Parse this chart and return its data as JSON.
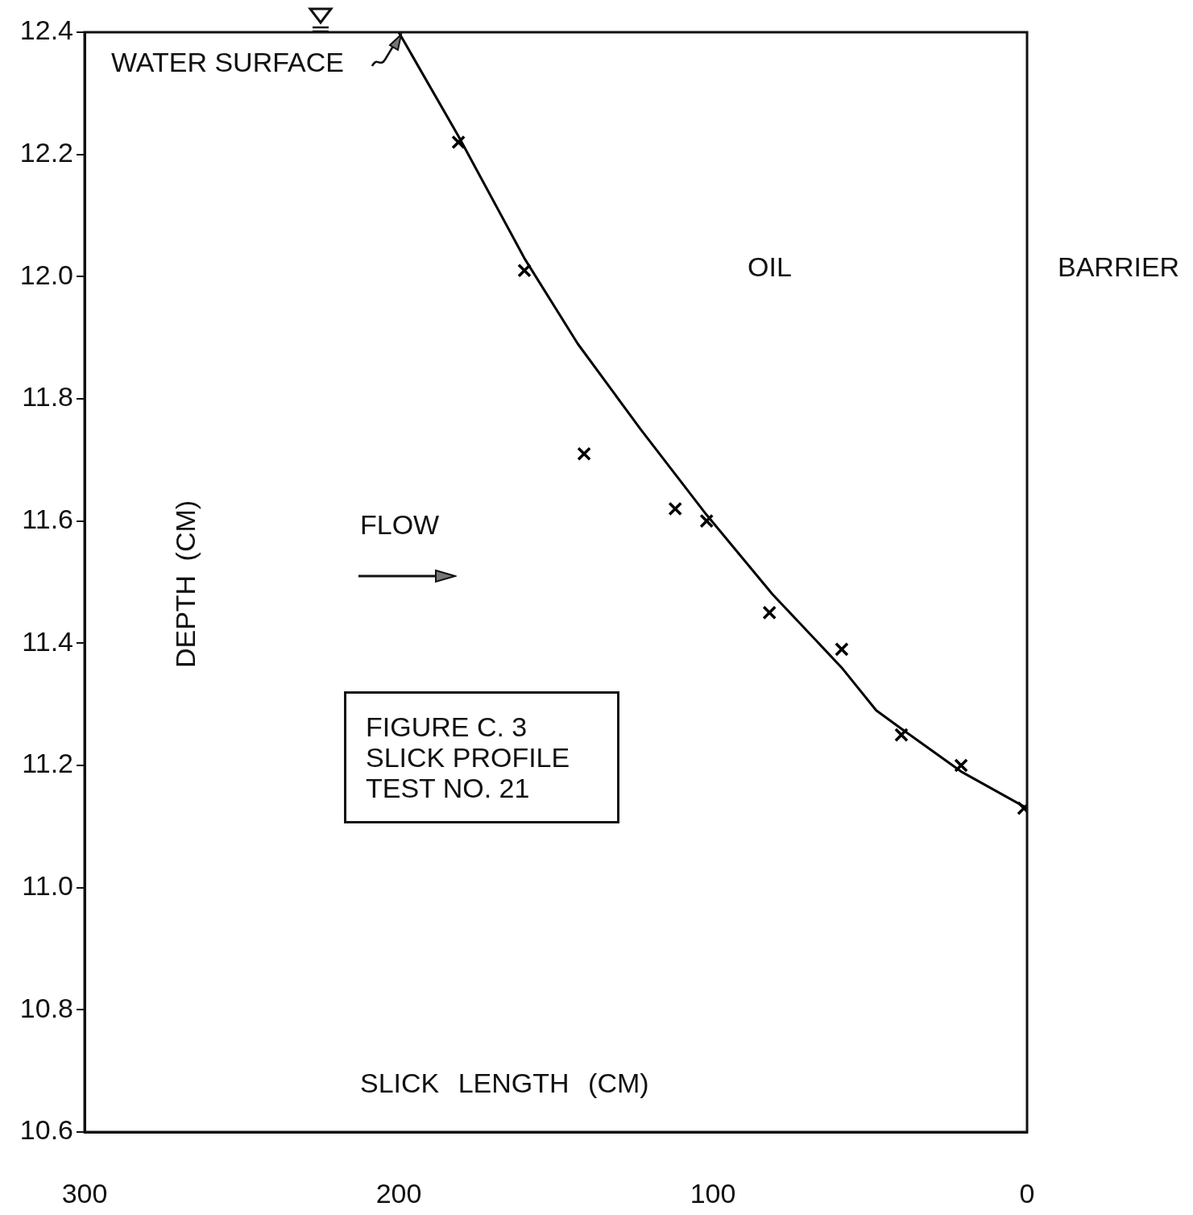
{
  "chart_data": {
    "type": "scatter",
    "title": "FIGURE C. 3",
    "subtitle": "SLICK PROFILE TEST NO. 21",
    "xlabel": "SLICK LENGTH (CM)",
    "ylabel": "DEPTH (CM)",
    "xlim": [
      300,
      0
    ],
    "xticks": [
      300,
      200,
      100,
      0
    ],
    "ylim": [
      10.6,
      12.4
    ],
    "yticks": [
      10.6,
      10.8,
      {
        "value": 11,
        "label": "11.0"
      },
      11.2,
      11.4,
      11.6,
      11.8,
      {
        "value": 12,
        "label": "12.0"
      },
      12.2,
      12.4
    ],
    "annotations": [
      "WATER SURFACE",
      "OIL",
      "BARRIER",
      "FLOW"
    ],
    "series": [
      {
        "type": "line",
        "color": "#000000",
        "marker": "none",
        "line_style": "solid",
        "x": [
          200,
          181,
          160,
          143,
          123,
          102,
          81,
          59,
          48,
          40,
          21,
          0
        ],
        "values": [
          12.4,
          12.23,
          12.03,
          11.89,
          11.75,
          11.61,
          11.48,
          11.36,
          11.29,
          11.26,
          11.19,
          11.13
        ]
      },
      {
        "type": "scatter",
        "color": "#000000",
        "marker": "cross",
        "x": [
          181,
          160,
          141,
          112,
          102,
          82,
          59,
          40,
          21,
          1
        ],
        "values": [
          12.22,
          12.01,
          11.71,
          11.62,
          11.6,
          11.45,
          11.39,
          11.25,
          11.2,
          11.13
        ]
      }
    ]
  }
}
